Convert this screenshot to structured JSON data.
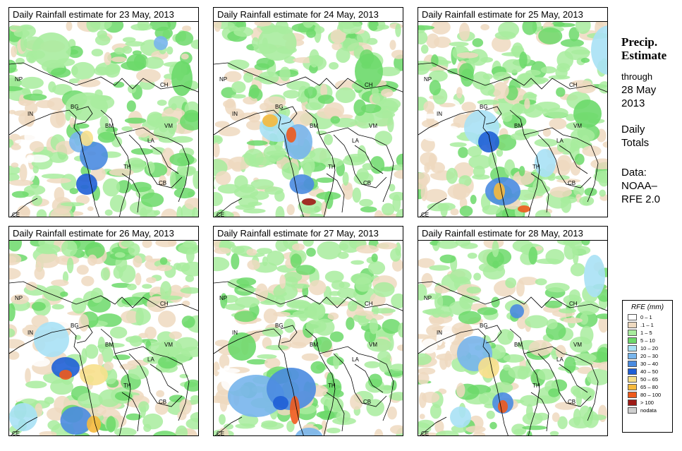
{
  "panels": [
    {
      "title": "Daily Rainfall estimate for  23 May, 2013"
    },
    {
      "title": "Daily Rainfall estimate for  24 May, 2013"
    },
    {
      "title": "Daily Rainfall estimate for  25 May, 2013"
    },
    {
      "title": "Daily Rainfall estimate for  26 May, 2013"
    },
    {
      "title": "Daily Rainfall estimate for  27 May, 2013"
    },
    {
      "title": "Daily Rainfall estimate for  28 May, 2013"
    }
  ],
  "country_labels": {
    "NP": "NP",
    "CH": "CH",
    "IN": "IN",
    "BG": "BG",
    "BM": "BM",
    "VM": "VM",
    "LA": "LA",
    "TH": "TH",
    "CB": "CB",
    "CE": "CE"
  },
  "side_info": {
    "heading_line1": "Precip.",
    "heading_line2": "Estimate",
    "through": "through",
    "date_line1": "28 May",
    "date_line2": "2013",
    "totals_line1": "Daily",
    "totals_line2": "Totals",
    "data_line1": "Data:",
    "data_line2": "NOAA–",
    "data_line3": "RFE 2.0"
  },
  "legend": {
    "title": "RFE (mm)",
    "items": [
      {
        "label": "0 – 1",
        "color": "#ffffff"
      },
      {
        "label": ".1 – 1",
        "color": "#eed9bf"
      },
      {
        "label": "1 – 5",
        "color": "#a8ec9e"
      },
      {
        "label": "5 – 10",
        "color": "#6cd96a"
      },
      {
        "label": "10 – 20",
        "color": "#a9e1f5"
      },
      {
        "label": "20 – 30",
        "color": "#78b5ec"
      },
      {
        "label": "30 – 40",
        "color": "#4a8be0"
      },
      {
        "label": "40 – 50",
        "color": "#1f5fd6"
      },
      {
        "label": "50 – 65",
        "color": "#f7e08c"
      },
      {
        "label": "65 – 80",
        "color": "#f6b93d"
      },
      {
        "label": "80 – 100",
        "color": "#ef5a1c"
      },
      {
        "label": "> 100",
        "color": "#9e1a16"
      },
      {
        "label": "nodata",
        "color": "#cfcfcf"
      }
    ]
  }
}
